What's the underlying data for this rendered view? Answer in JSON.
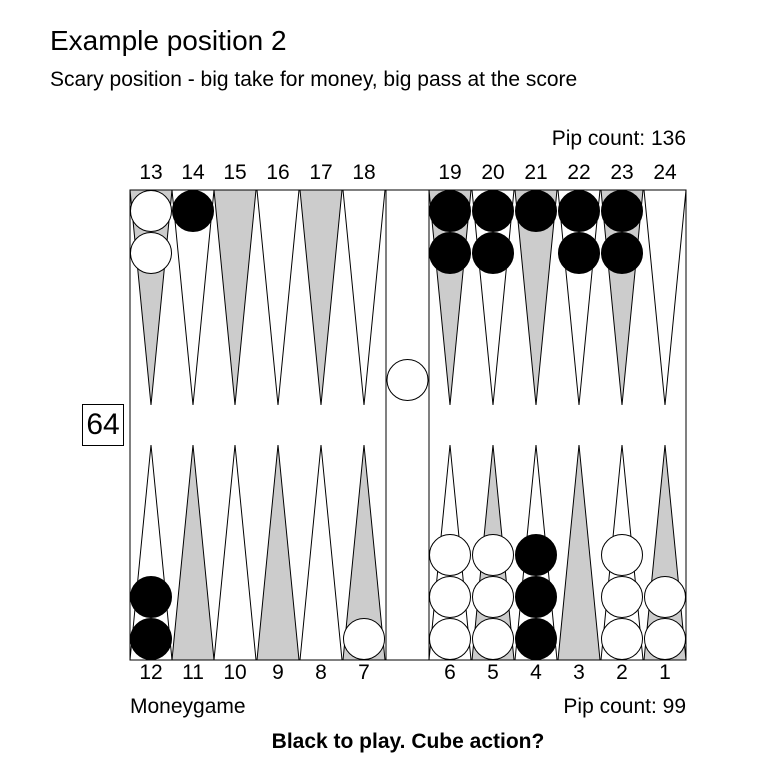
{
  "header": {
    "title": "Example position 2",
    "subtitle": "Scary position - big take for money, big pass at the score"
  },
  "pip_counts": {
    "top": "Pip count: 136",
    "bottom": "Pip count: 99"
  },
  "point_labels": {
    "top": [
      "13",
      "14",
      "15",
      "16",
      "17",
      "18",
      "19",
      "20",
      "21",
      "22",
      "23",
      "24"
    ],
    "bottom": [
      "12",
      "11",
      "10",
      "9",
      "8",
      "7",
      "6",
      "5",
      "4",
      "3",
      "2",
      "1"
    ]
  },
  "cube": {
    "value": "64"
  },
  "footer": {
    "match_type": "Moneygame",
    "prompt": "Black to play. Cube action?"
  },
  "position": {
    "points": [
      {
        "point": 13,
        "color": "white",
        "count": 2
      },
      {
        "point": 14,
        "color": "black",
        "count": 1
      },
      {
        "point": 19,
        "color": "black",
        "count": 2
      },
      {
        "point": 20,
        "color": "black",
        "count": 2
      },
      {
        "point": 21,
        "color": "black",
        "count": 1
      },
      {
        "point": 22,
        "color": "black",
        "count": 2
      },
      {
        "point": 23,
        "color": "black",
        "count": 2
      },
      {
        "point": 12,
        "color": "black",
        "count": 2
      },
      {
        "point": 7,
        "color": "white",
        "count": 1
      },
      {
        "point": 6,
        "color": "white",
        "count": 3
      },
      {
        "point": 5,
        "color": "white",
        "count": 3
      },
      {
        "point": 4,
        "color": "black",
        "count": 3
      },
      {
        "point": 2,
        "color": "white",
        "count": 3
      },
      {
        "point": 1,
        "color": "white",
        "count": 2
      }
    ],
    "bar": [
      {
        "color": "white",
        "count": 1
      }
    ]
  },
  "colors": {
    "board_bg": "#ffffff",
    "shaded_point": "#cccccc",
    "white_checker": "#ffffff",
    "black_checker": "#000000",
    "line": "#000000"
  }
}
